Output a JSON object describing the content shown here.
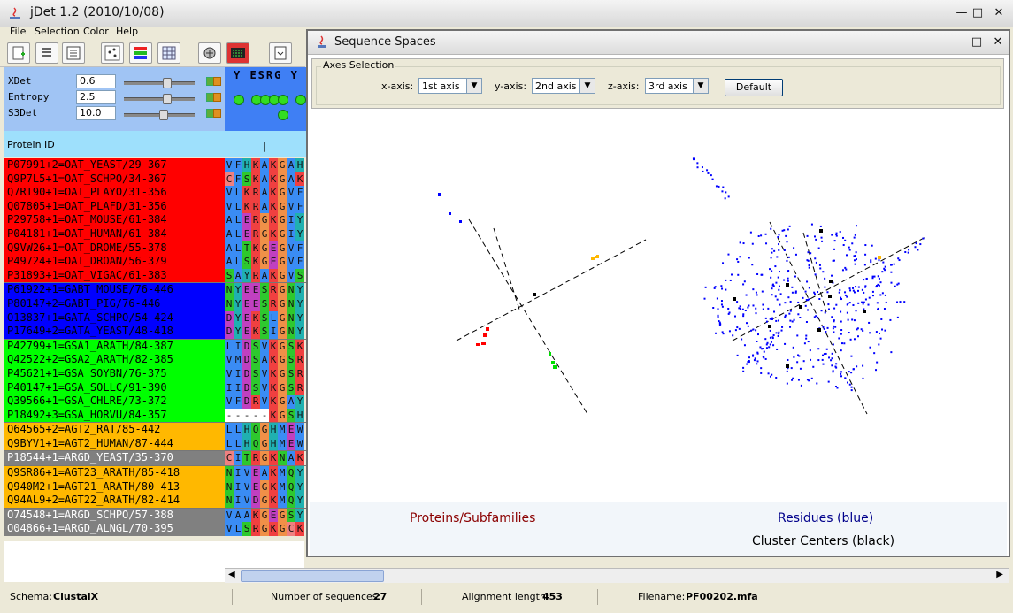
{
  "window": {
    "title": "jDet 1.2 (2010/10/08)"
  },
  "menu": [
    "File",
    "Selection",
    "Color",
    "Help"
  ],
  "params": [
    {
      "label": "XDet",
      "value": "0.6",
      "slider": 0.6
    },
    {
      "label": "Entropy",
      "value": "2.5",
      "slider": 0.6
    },
    {
      "label": "S3Det",
      "value": "10.0",
      "slider": 0.55
    }
  ],
  "column_header": {
    "symbols": "Y ESRG Y",
    "protein_id_label": "Protein ID",
    "marker": "|"
  },
  "groups": [
    {
      "color": "#ff0000",
      "text": "#000000",
      "rows": [
        {
          "label": "P07991+2=OAT_YEAST/29-367",
          "seq": "VFHKAKGAH"
        },
        {
          "label": "Q9P7L5+1=OAT_SCHPO/34-367",
          "seq": "CFSKAKGAK"
        },
        {
          "label": "Q7RT90+1=OAT_PLAYO/31-356",
          "seq": "VLKRAKGVF"
        },
        {
          "label": "Q07805+1=OAT_PLAFD/31-356",
          "seq": "VLKRAKGVF"
        },
        {
          "label": "P29758+1=OAT_MOUSE/61-384",
          "seq": "ALERGKGIY"
        },
        {
          "label": "P04181+1=OAT_HUMAN/61-384",
          "seq": "ALERGKGIY"
        },
        {
          "label": "Q9VW26+1=OAT_DROME/55-378",
          "seq": "ALTKGEGVF"
        },
        {
          "label": "P49724+1=OAT_DROAN/56-379",
          "seq": "ALSKGEGVF"
        },
        {
          "label": "P31893+1=OAT_VIGAC/61-383",
          "seq": "SAYRAKGVS"
        }
      ]
    },
    {
      "color": "#0000ff",
      "text": "#000000",
      "rows": [
        {
          "label": "P61922+1=GABT_MOUSE/76-446",
          "seq": "NYEESRGNY"
        },
        {
          "label": "P80147+2=GABT_PIG/76-446",
          "seq": "NYEESRGNY"
        },
        {
          "label": "O13837+1=GATA_SCHPO/54-424",
          "seq": "DYEKSLGNY"
        },
        {
          "label": "P17649+2=GATA_YEAST/48-418",
          "seq": "DYEKSIGNY"
        }
      ]
    },
    {
      "color": "#00ff00",
      "text": "#000000",
      "rows": [
        {
          "label": "P42799+1=GSA1_ARATH/84-387",
          "seq": "LIDSVKGSK"
        },
        {
          "label": "Q42522+2=GSA2_ARATH/82-385",
          "seq": "VMDSAKGSR"
        },
        {
          "label": "P45621+1=GSA_SOYBN/76-375",
          "seq": "VIDSVKGSR"
        },
        {
          "label": "P40147+1=GSA_SOLLC/91-390",
          "seq": "IIDSVKGSR"
        },
        {
          "label": "Q39566+1=GSA_CHLRE/73-372",
          "seq": "VFDRVKGAY"
        },
        {
          "label": "P18492+3=GSA_HORVU/84-357",
          "seq": "-----KGSH"
        }
      ]
    },
    {
      "color": "#ffb800",
      "text": "#000000",
      "rows": [
        {
          "label": "Q64565+2=AGT2_RAT/85-442",
          "seq": "LLHQGHMEW"
        },
        {
          "label": "Q9BYV1+1=AGT2_HUMAN/87-444",
          "seq": "LLHQGHMEW"
        }
      ]
    },
    {
      "color": "#808080",
      "text": "#ffffff",
      "rows": [
        {
          "label": "P18544+1=ARGD_YEAST/35-370",
          "seq": "CITRGKNAK"
        }
      ]
    },
    {
      "color": "#ffb800",
      "text": "#000000",
      "rows": [
        {
          "label": "Q9SR86+1=AGT23_ARATH/85-418",
          "seq": "NIVEAKMQY"
        },
        {
          "label": "Q940M2+1=AGT21_ARATH/80-413",
          "seq": "NIVEGKMQY"
        },
        {
          "label": "Q94AL9+2=AGT22_ARATH/82-414",
          "seq": "NIVDGKMQY"
        }
      ]
    },
    {
      "color": "#808080",
      "text": "#ffffff",
      "rows": [
        {
          "label": "O74548+1=ARGD_SCHPO/57-388",
          "seq": "VAAKGEGSY"
        },
        {
          "label": "O04866+1=ARGD_ALNGL/70-395",
          "seq": "VLSRGKGCK"
        }
      ]
    }
  ],
  "status": {
    "schema_label": "Schema:",
    "schema_value": "ClustalX",
    "nseq_label": "Number of sequences:",
    "nseq_value": "27",
    "alen_label": "Alignment length:",
    "alen_value": "453",
    "file_label": "Filename:",
    "file_value": "PF00202.mfa"
  },
  "dialog": {
    "title": "Sequence Spaces",
    "axes_legend": "Axes Selection",
    "x_label": "x-axis:",
    "x_value": "1st axis",
    "y_label": "y-axis:",
    "y_value": "2nd axis",
    "z_label": "z-axis:",
    "z_value": "3rd axis",
    "default_label": "Default",
    "caption_proteins": "Proteins/Subfamilies",
    "caption_residues": "Residues (blue)",
    "caption_centers": "Cluster Centers (black)"
  },
  "colors": {
    "red": "#ff0000",
    "blue": "#0000ff",
    "green": "#00ff00",
    "orange": "#ffb800",
    "gray": "#808080"
  }
}
